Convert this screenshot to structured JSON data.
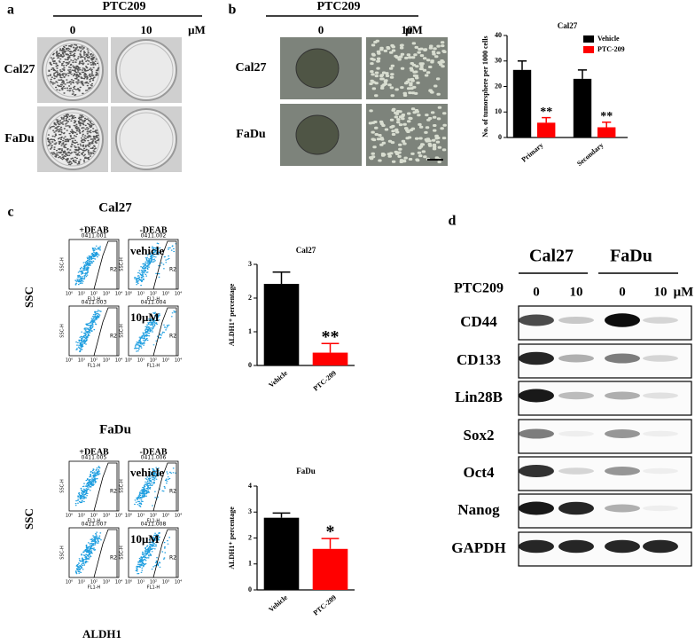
{
  "panel_a": {
    "label": "a",
    "treatment": "PTC209",
    "doses": [
      "0",
      "10"
    ],
    "unit": "μM",
    "cell_lines": [
      "Cal27",
      "FaDu"
    ]
  },
  "panel_b": {
    "label": "b",
    "treatment": "PTC209",
    "doses": [
      "0",
      "10"
    ],
    "unit": "μM",
    "cell_lines": [
      "Cal27",
      "FaDu"
    ]
  },
  "panel_c": {
    "label": "c",
    "y_label": "SSC",
    "x_label": "ALDH1",
    "flow_axis": {
      "y": "SSC-H",
      "x": "FL1-H",
      "gate": "R2",
      "ticks": [
        "10⁰",
        "10¹",
        "10²",
        "10³",
        "10⁴"
      ]
    },
    "blocks": [
      {
        "title": "Cal27",
        "conditions": [
          "+DEAB",
          "-DEAB"
        ],
        "sample_ids": [
          "0411.001",
          "0411.002",
          "0411.003",
          "0411.004"
        ],
        "treatments": [
          "vehicle",
          "10μM"
        ]
      },
      {
        "title": "FaDu",
        "conditions": [
          "+DEAB",
          "-DEAB"
        ],
        "sample_ids": [
          "0411.005",
          "0411.006",
          "0411.007",
          "0411.008"
        ],
        "treatments": [
          "vehicle",
          "10μM"
        ]
      }
    ]
  },
  "panel_d": {
    "label": "d",
    "cell_lines": [
      "Cal27",
      "FaDu"
    ],
    "treatment": "PTC209",
    "doses": [
      "0",
      "10",
      "0",
      "10"
    ],
    "unit": "μM",
    "proteins": [
      "CD44",
      "CD133",
      "Lin28B",
      "Sox2",
      "Oct4",
      "Nanog",
      "GAPDH"
    ]
  },
  "chart_data": [
    {
      "type": "bar",
      "title": "Cal27",
      "y_label": "No. of tumorsphere per 1000 cells",
      "categories": [
        "Primary",
        "Secondary"
      ],
      "series": [
        {
          "name": "Vehicle",
          "color": "#000000",
          "values": [
            26.5,
            23
          ],
          "errors": [
            3.5,
            3.5
          ],
          "significance": [
            null,
            null
          ]
        },
        {
          "name": "PTC-209",
          "color": "#ff0000",
          "values": [
            5.8,
            4
          ],
          "errors": [
            2,
            2
          ],
          "significance": [
            "**",
            "**"
          ]
        }
      ],
      "ylim": [
        0,
        40
      ],
      "yticks": [
        0,
        10,
        20,
        30,
        40
      ],
      "legend": "top-right"
    },
    {
      "type": "bar",
      "title": "Cal27",
      "y_label": "ALDH1⁺ percentage",
      "categories": [
        "Vehicle",
        "PTC-209"
      ],
      "values": [
        2.42,
        0.38
      ],
      "errors": [
        0.35,
        0.27
      ],
      "colors": [
        "#000000",
        "#ff0000"
      ],
      "significance": [
        null,
        "**"
      ],
      "ylim": [
        0,
        3
      ],
      "yticks": [
        0,
        1,
        2,
        3
      ]
    },
    {
      "type": "bar",
      "title": "FaDu",
      "y_label": "ALDH1⁺ percentage",
      "categories": [
        "Vehicle",
        "PTC-209"
      ],
      "values": [
        2.78,
        1.58
      ],
      "errors": [
        0.18,
        0.4
      ],
      "colors": [
        "#000000",
        "#ff0000"
      ],
      "significance": [
        null,
        "*"
      ],
      "ylim": [
        0,
        4
      ],
      "yticks": [
        0,
        1,
        2,
        3,
        4
      ]
    }
  ]
}
